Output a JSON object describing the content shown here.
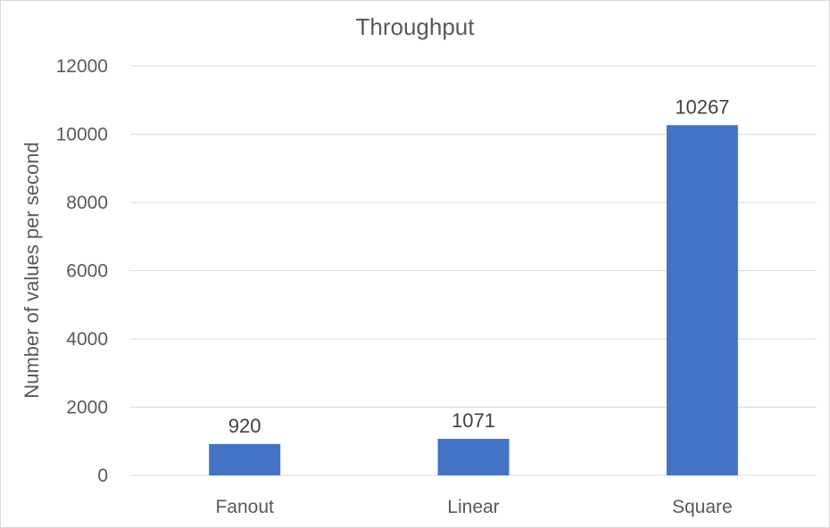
{
  "chart_data": {
    "type": "bar",
    "title": "Throughput",
    "xlabel": "",
    "ylabel": "Number of values per second",
    "categories": [
      "Fanout",
      "Linear",
      "Square"
    ],
    "values": [
      920,
      1071,
      10267
    ],
    "data_labels": [
      "920",
      "1071",
      "10267"
    ],
    "ylim": [
      0,
      12000
    ],
    "yticks": [
      0,
      2000,
      4000,
      6000,
      8000,
      10000,
      12000
    ],
    "ytick_labels": [
      "0",
      "2000",
      "4000",
      "6000",
      "8000",
      "10000",
      "12000"
    ],
    "grid": true,
    "legend": "none",
    "colors": {
      "bar": "#4472c4"
    }
  }
}
